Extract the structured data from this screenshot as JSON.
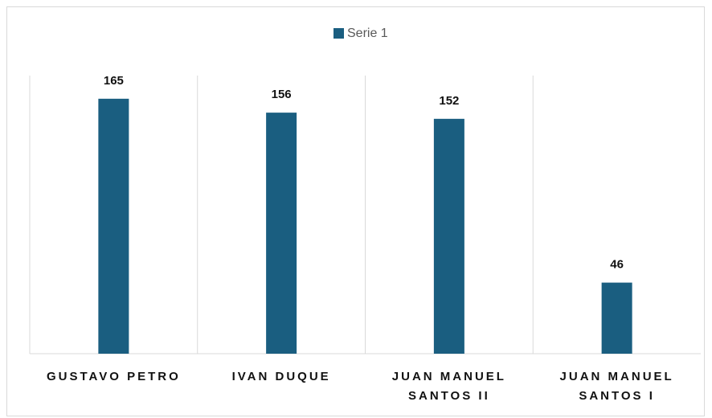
{
  "chart_data": {
    "type": "bar",
    "categories": [
      "GUSTAVO PETRO",
      "IVAN DUQUE",
      "JUAN MANUEL SANTOS II",
      "JUAN MANUEL SANTOS I"
    ],
    "series": [
      {
        "name": "Serie 1",
        "color": "#1a5e80",
        "values": [
          165,
          156,
          152,
          46
        ]
      }
    ],
    "ylim": [
      0,
      180
    ],
    "legend": "top"
  }
}
